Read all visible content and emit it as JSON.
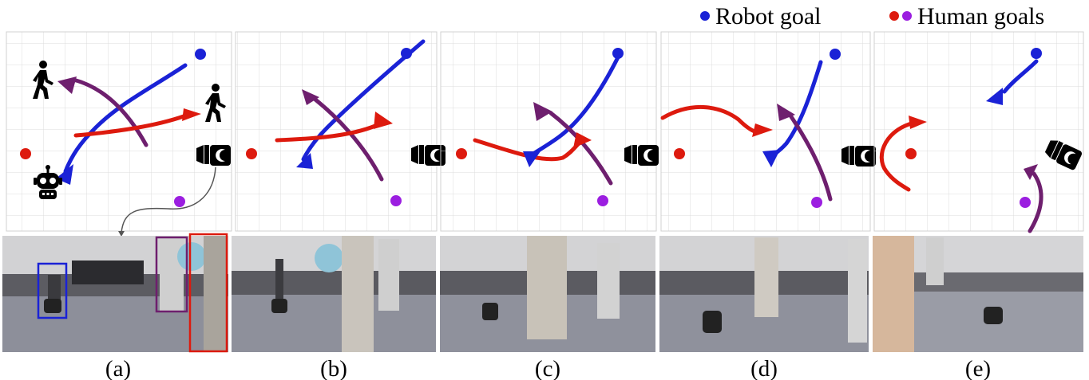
{
  "legend": {
    "robot_goal_label": "Robot goal",
    "human_goals_label": "Human goals"
  },
  "captions": [
    "(a)",
    "(b)",
    "(c)",
    "(d)",
    "(e)"
  ],
  "colors": {
    "robot_path": "#1a22d6",
    "human1_path": "#dd1a0e",
    "human2_path": "#6e1f6e",
    "robot_goal": "#1a22d6",
    "human_goal_red": "#dd1a0e",
    "human_goal_purple": "#9b1ee0",
    "grid": "#d9d9d9"
  },
  "icons": [
    "walking-person-icon",
    "robot-icon",
    "camera-icon"
  ]
}
